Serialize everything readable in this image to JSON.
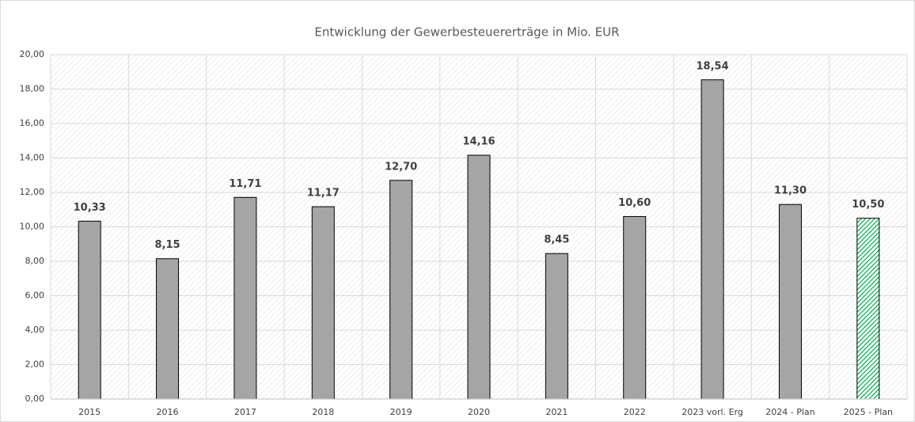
{
  "chart_data": {
    "type": "bar",
    "title": "Entwicklung der Gewerbesteuererträge in Mio. EUR",
    "categories": [
      "2015",
      "2016",
      "2017",
      "2018",
      "2019",
      "2020",
      "2021",
      "2022",
      "2023 vorl. Erg",
      "2024 - Plan",
      "2025 - Plan"
    ],
    "values": [
      10.33,
      8.15,
      11.71,
      11.17,
      12.7,
      14.16,
      8.45,
      10.6,
      18.54,
      11.3,
      10.5
    ],
    "value_labels": [
      "10,33",
      "8,15",
      "11,71",
      "11,17",
      "12,70",
      "14,16",
      "8,45",
      "10,60",
      "18,54",
      "11,30",
      "10,50"
    ],
    "colors": [
      "#a5a5a5",
      "#a5a5a5",
      "#a5a5a5",
      "#a5a5a5",
      "#a5a5a5",
      "#a5a5a5",
      "#a5a5a5",
      "#a5a5a5",
      "#a5a5a5",
      "#a5a5a5",
      "#00b050"
    ],
    "fills": [
      "solid",
      "solid",
      "solid",
      "solid",
      "solid",
      "solid",
      "solid",
      "solid",
      "solid",
      "solid",
      "hatch"
    ],
    "ylim": [
      0,
      20
    ],
    "yticks": [
      {
        "value": 0,
        "label": "0,00"
      },
      {
        "value": 2,
        "label": "2,00"
      },
      {
        "value": 4,
        "label": "4,00"
      },
      {
        "value": 6,
        "label": "6,00"
      },
      {
        "value": 8,
        "label": "8,00"
      },
      {
        "value": 10,
        "label": "10,00"
      },
      {
        "value": 12,
        "label": "12,00"
      },
      {
        "value": 14,
        "label": "14,00"
      },
      {
        "value": 16,
        "label": "16,00"
      },
      {
        "value": 18,
        "label": "18,00"
      },
      {
        "value": 20,
        "label": "20,00"
      }
    ],
    "grid": true
  }
}
